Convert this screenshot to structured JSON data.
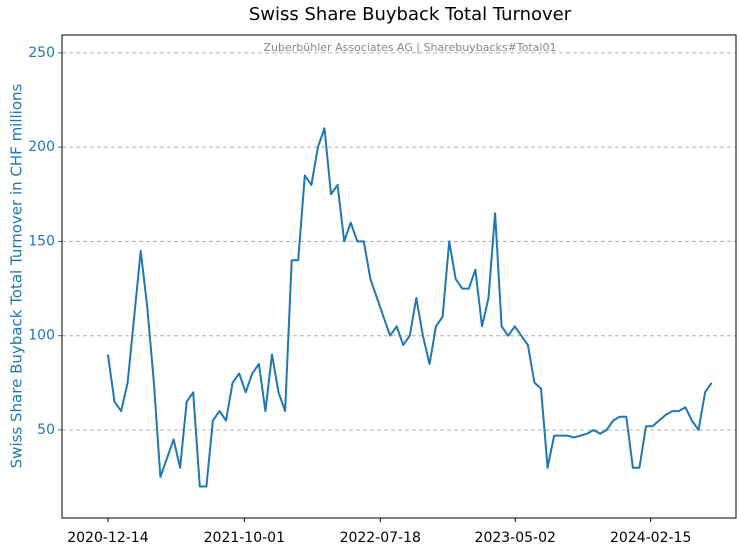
{
  "chart_data": {
    "type": "line",
    "title": "Swiss Share Buyback Total Turnover",
    "annotation": "Zuberbühler Associates AG | Sharebuybacks#Total01",
    "y_label": "Swiss Share Buyback Total Turnover in CHF millions",
    "x": [
      "2020-12-14",
      "2020-12-28",
      "2021-01-11",
      "2021-01-25",
      "2021-02-08",
      "2021-02-22",
      "2021-03-08",
      "2021-03-22",
      "2021-04-05",
      "2021-04-19",
      "2021-05-03",
      "2021-05-17",
      "2021-05-31",
      "2021-06-14",
      "2021-06-28",
      "2021-07-12",
      "2021-07-26",
      "2021-08-09",
      "2021-08-23",
      "2021-09-06",
      "2021-09-20",
      "2021-10-04",
      "2021-10-18",
      "2021-11-01",
      "2021-11-15",
      "2021-11-29",
      "2021-12-13",
      "2021-12-27",
      "2022-01-10",
      "2022-01-24",
      "2022-02-07",
      "2022-02-21",
      "2022-03-07",
      "2022-03-21",
      "2022-04-04",
      "2022-04-18",
      "2022-05-02",
      "2022-05-16",
      "2022-05-30",
      "2022-06-13",
      "2022-06-27",
      "2022-07-11",
      "2022-07-25",
      "2022-08-08",
      "2022-08-22",
      "2022-09-05",
      "2022-09-19",
      "2022-10-03",
      "2022-10-17",
      "2022-10-31",
      "2022-11-14",
      "2022-11-28",
      "2022-12-12",
      "2022-12-26",
      "2023-01-09",
      "2023-01-23",
      "2023-02-06",
      "2023-02-20",
      "2023-03-06",
      "2023-03-20",
      "2023-04-03",
      "2023-04-17",
      "2023-05-01",
      "2023-05-15",
      "2023-05-29",
      "2023-06-12",
      "2023-06-26",
      "2023-07-10",
      "2023-07-24",
      "2023-08-07",
      "2023-08-21",
      "2023-09-04",
      "2023-09-18",
      "2023-10-02",
      "2023-10-16",
      "2023-10-30",
      "2023-11-13",
      "2023-11-27",
      "2023-12-11",
      "2023-12-25",
      "2024-01-08",
      "2024-01-22",
      "2024-02-05",
      "2024-02-19",
      "2024-03-04",
      "2024-03-18",
      "2024-04-01",
      "2024-04-15",
      "2024-04-29",
      "2024-05-13",
      "2024-05-27",
      "2024-06-10",
      "2024-06-24"
    ],
    "series": [
      {
        "name": "Total Turnover",
        "color": "#1f77b4",
        "values": [
          90,
          65,
          60,
          75,
          110,
          145,
          115,
          75,
          25,
          35,
          45,
          30,
          65,
          70,
          20,
          20,
          55,
          60,
          55,
          75,
          80,
          70,
          80,
          85,
          60,
          90,
          70,
          60,
          140,
          140,
          185,
          180,
          200,
          210,
          175,
          180,
          150,
          160,
          150,
          150,
          130,
          120,
          110,
          100,
          105,
          95,
          100,
          120,
          100,
          85,
          105,
          110,
          150,
          130,
          125,
          125,
          135,
          105,
          120,
          165,
          105,
          100,
          105,
          100,
          95,
          75,
          72,
          30,
          47,
          47,
          47,
          46,
          47,
          48,
          50,
          48,
          50,
          55,
          57,
          57,
          30,
          30,
          52,
          52,
          55,
          58,
          60,
          60,
          62,
          55,
          50,
          70,
          75
        ]
      }
    ],
    "xlim": [
      "2020-09-07",
      "2024-08-15"
    ],
    "xticks": [
      "2020-12-14",
      "2021-10-01",
      "2022-07-18",
      "2023-05-02",
      "2024-02-15"
    ],
    "ylim": [
      3.3,
      259.5
    ],
    "yticks": [
      50,
      100,
      150,
      200,
      250
    ],
    "grid": "y"
  }
}
